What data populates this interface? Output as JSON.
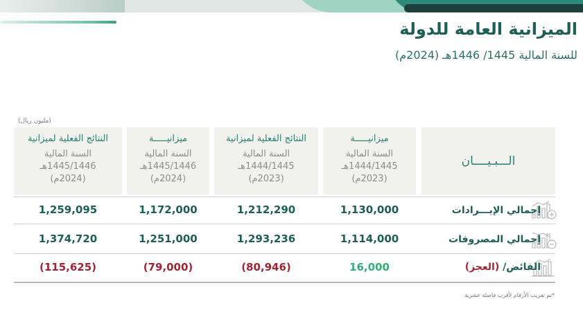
{
  "header": {
    "title": "الميزانية العامة للدولة",
    "subtitle": "للسنة المالية 1445/ 1446هـ (2024م)"
  },
  "unit": "(مليون ريال)",
  "columns": [
    {
      "line1": "ميزانيـــــة",
      "line2": "السنة المالية",
      "line3": "1444/1445هـ",
      "line4": "(2023م)"
    },
    {
      "line1": "النتائج الفعلية لميزانية",
      "line2": "السنة المالية",
      "line3": "1444/1445هـ",
      "line4": "(2023م)"
    },
    {
      "line1": "ميزانيـــــة",
      "line2": "السنة المالية",
      "line3": "1445/1446هـ",
      "line4": "(2024م)"
    },
    {
      "line1": "النتائج الفعلية لميزانية",
      "line2": "السنة المالية",
      "line3": "1445/1446هـ",
      "line4": "(2024م)"
    }
  ],
  "label_header": "الـــبـيــــان",
  "rows": [
    {
      "label": "إجمالي الإيـــرادات",
      "icon": "revenue-chart-plus-icon",
      "values": [
        "1,130,000",
        "1,212,290",
        "1,172,000",
        "1,259,095"
      ]
    },
    {
      "label": "إجمالي المصروفات",
      "icon": "expense-chart-minus-icon",
      "values": [
        "1,114,000",
        "1,293,236",
        "1,251,000",
        "1,374,720"
      ]
    },
    {
      "label_part1": "الفائض/",
      "label_part2": " (العجز)",
      "icon": "balance-chart-icon",
      "values": [
        "16,000",
        "(80,946)",
        "(79,000)",
        "(115,625)"
      ]
    }
  ],
  "footnote": "*تم تقريب الأرقام لأقرب فاصلة عشرية",
  "colors": {
    "primary": "#1f5e57",
    "accent": "#2a7d6f",
    "negative": "#a32433",
    "positive": "#33b07a"
  }
}
